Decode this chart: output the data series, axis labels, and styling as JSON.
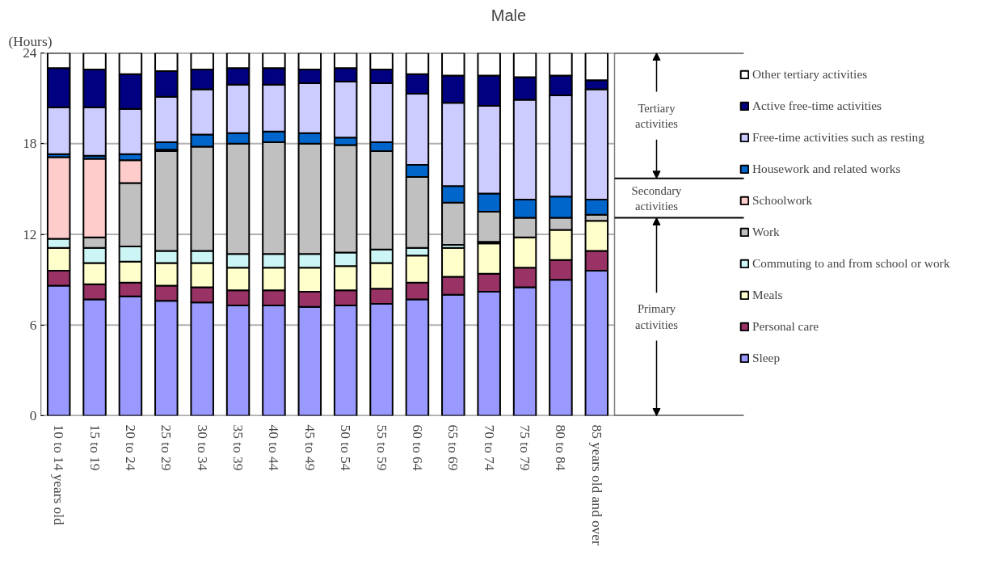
{
  "chart_data": {
    "type": "bar",
    "stacked": true,
    "title": "Male",
    "ylabel": "(Hours)",
    "categories": [
      "10 to 14 years old",
      "15 to 19",
      "20 to 24",
      "25 to 29",
      "30 to 34",
      "35 to 39",
      "40 to 44",
      "45 to 49",
      "50 to 54",
      "55 to 59",
      "60 to 64",
      "65 to 69",
      "70 to 74",
      "75 to 79",
      "80 to 84",
      "85 years old and over"
    ],
    "ylim": [
      0,
      24
    ],
    "yticks": [
      0,
      6,
      12,
      18,
      24
    ],
    "grid": "y",
    "legend": "right",
    "annotations": [
      "Tertiary activities",
      "Secondary activities",
      "Primary activities"
    ],
    "series": [
      {
        "name": "Sleep",
        "color": "#9999ff",
        "values": [
          8.6,
          7.7,
          7.9,
          7.6,
          7.5,
          7.3,
          7.3,
          7.2,
          7.3,
          7.4,
          7.7,
          8.0,
          8.2,
          8.5,
          9.0,
          9.6
        ]
      },
      {
        "name": "Personal care",
        "color": "#993366",
        "values": [
          1.0,
          1.0,
          0.9,
          1.0,
          1.0,
          1.0,
          1.0,
          1.0,
          1.0,
          1.0,
          1.1,
          1.2,
          1.2,
          1.3,
          1.3,
          1.3
        ]
      },
      {
        "name": "Meals",
        "color": "#ffffcc",
        "values": [
          1.5,
          1.4,
          1.4,
          1.5,
          1.6,
          1.5,
          1.5,
          1.6,
          1.6,
          1.7,
          1.8,
          1.9,
          2.0,
          2.0,
          2.0,
          2.0
        ]
      },
      {
        "name": "Commuting to and from school or work",
        "color": "#ccf5f5",
        "values": [
          0.6,
          1.0,
          1.0,
          0.8,
          0.8,
          0.9,
          0.9,
          0.9,
          0.9,
          0.9,
          0.5,
          0.2,
          0.1,
          0,
          0,
          0
        ]
      },
      {
        "name": "Work",
        "color": "#c0c0c0",
        "values": [
          0,
          0.7,
          4.2,
          6.6,
          6.9,
          7.3,
          7.4,
          7.3,
          7.1,
          6.5,
          4.7,
          2.8,
          2.0,
          1.3,
          0.8,
          0.4
        ]
      },
      {
        "name": "Schoolwork",
        "color": "#ffcccc",
        "values": [
          5.4,
          5.2,
          1.5,
          0.1,
          0,
          0,
          0,
          0,
          0,
          0,
          0,
          0,
          0,
          0,
          0,
          0
        ]
      },
      {
        "name": "Housework and related works",
        "color": "#0066cc",
        "values": [
          0.2,
          0.2,
          0.4,
          0.5,
          0.8,
          0.7,
          0.7,
          0.7,
          0.5,
          0.6,
          0.8,
          1.1,
          1.2,
          1.2,
          1.4,
          1.0
        ]
      },
      {
        "name": "Free-time activities such as resting",
        "color": "#ccccff",
        "values": [
          3.1,
          3.2,
          3.0,
          3.0,
          3.0,
          3.2,
          3.1,
          3.3,
          3.7,
          3.9,
          4.7,
          5.5,
          5.8,
          6.6,
          6.7,
          7.3
        ]
      },
      {
        "name": "Active free-time activities",
        "color": "#000080",
        "values": [
          2.6,
          2.5,
          2.3,
          1.7,
          1.3,
          1.1,
          1.1,
          0.9,
          0.9,
          0.9,
          1.3,
          1.8,
          2.0,
          1.5,
          1.3,
          0.6
        ]
      },
      {
        "name": "Other tertiary activities",
        "color": "#ffffff",
        "values": [
          1.0,
          1.1,
          1.4,
          1.2,
          1.1,
          1.0,
          1.0,
          1.1,
          1.0,
          1.1,
          1.4,
          1.5,
          1.5,
          1.6,
          1.5,
          1.8
        ]
      }
    ]
  }
}
